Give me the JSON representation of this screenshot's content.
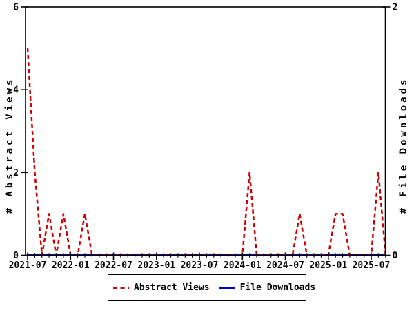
{
  "chart_data": {
    "type": "line",
    "title": "",
    "x": [
      "2021-07",
      "2021-08",
      "2021-09",
      "2021-10",
      "2021-11",
      "2021-12",
      "2022-01",
      "2022-02",
      "2022-03",
      "2022-04",
      "2022-05",
      "2022-06",
      "2022-07",
      "2022-08",
      "2022-09",
      "2022-10",
      "2022-11",
      "2022-12",
      "2023-01",
      "2023-02",
      "2023-03",
      "2023-04",
      "2023-05",
      "2023-06",
      "2023-07",
      "2023-08",
      "2023-09",
      "2023-10",
      "2023-11",
      "2023-12",
      "2024-01",
      "2024-02",
      "2024-03",
      "2024-04",
      "2024-05",
      "2024-06",
      "2024-07",
      "2024-08",
      "2024-09",
      "2024-10",
      "2024-11",
      "2024-12",
      "2025-01",
      "2025-02",
      "2025-03",
      "2025-04",
      "2025-05",
      "2025-06",
      "2025-07",
      "2025-08",
      "2025-09"
    ],
    "series": [
      {
        "name": "Abstract Views",
        "axis": "left",
        "style": "dashed",
        "color": "#cc0000",
        "values": [
          5,
          2,
          0,
          1,
          0,
          1,
          0,
          0,
          1,
          0,
          0,
          0,
          0,
          0,
          0,
          0,
          0,
          0,
          0,
          0,
          0,
          0,
          0,
          0,
          0,
          0,
          0,
          0,
          0,
          0,
          0,
          2,
          0,
          0,
          0,
          0,
          0,
          0,
          1,
          0,
          0,
          0,
          0,
          1,
          1,
          0,
          0,
          0,
          0,
          2,
          0
        ]
      },
      {
        "name": "File Downloads",
        "axis": "right",
        "style": "solid",
        "color": "#0000cc",
        "values": [
          0,
          0,
          0,
          0,
          0,
          0,
          0,
          0,
          0,
          0,
          0,
          0,
          0,
          0,
          0,
          0,
          0,
          0,
          0,
          0,
          0,
          0,
          0,
          0,
          0,
          0,
          0,
          0,
          0,
          0,
          0,
          0,
          0,
          0,
          0,
          0,
          0,
          0,
          0,
          0,
          0,
          0,
          0,
          0,
          0,
          0,
          0,
          0,
          0,
          0,
          0
        ]
      }
    ],
    "xticks": {
      "major_labels": [
        "2021-07",
        "2022-01",
        "2022-07",
        "2023-01",
        "2023-07",
        "2024-01",
        "2024-07",
        "2025-01",
        "2025-07"
      ],
      "major_every": 6,
      "minor_every": 1
    },
    "left_axis": {
      "label": "# Abstract Views",
      "ticks": [
        0,
        2,
        4,
        6
      ],
      "range": [
        0,
        6
      ]
    },
    "right_axis": {
      "label": "# File Downloads",
      "ticks": [
        0,
        2
      ],
      "range": [
        0,
        2
      ]
    },
    "legend": {
      "position": "bottom-center",
      "entries": [
        {
          "label": "Abstract Views",
          "color": "#cc0000",
          "style": "dashed"
        },
        {
          "label": "File Downloads",
          "color": "#0000cc",
          "style": "solid"
        }
      ]
    },
    "grid": false,
    "background": "#ffffff",
    "axis_color": "#000000"
  }
}
